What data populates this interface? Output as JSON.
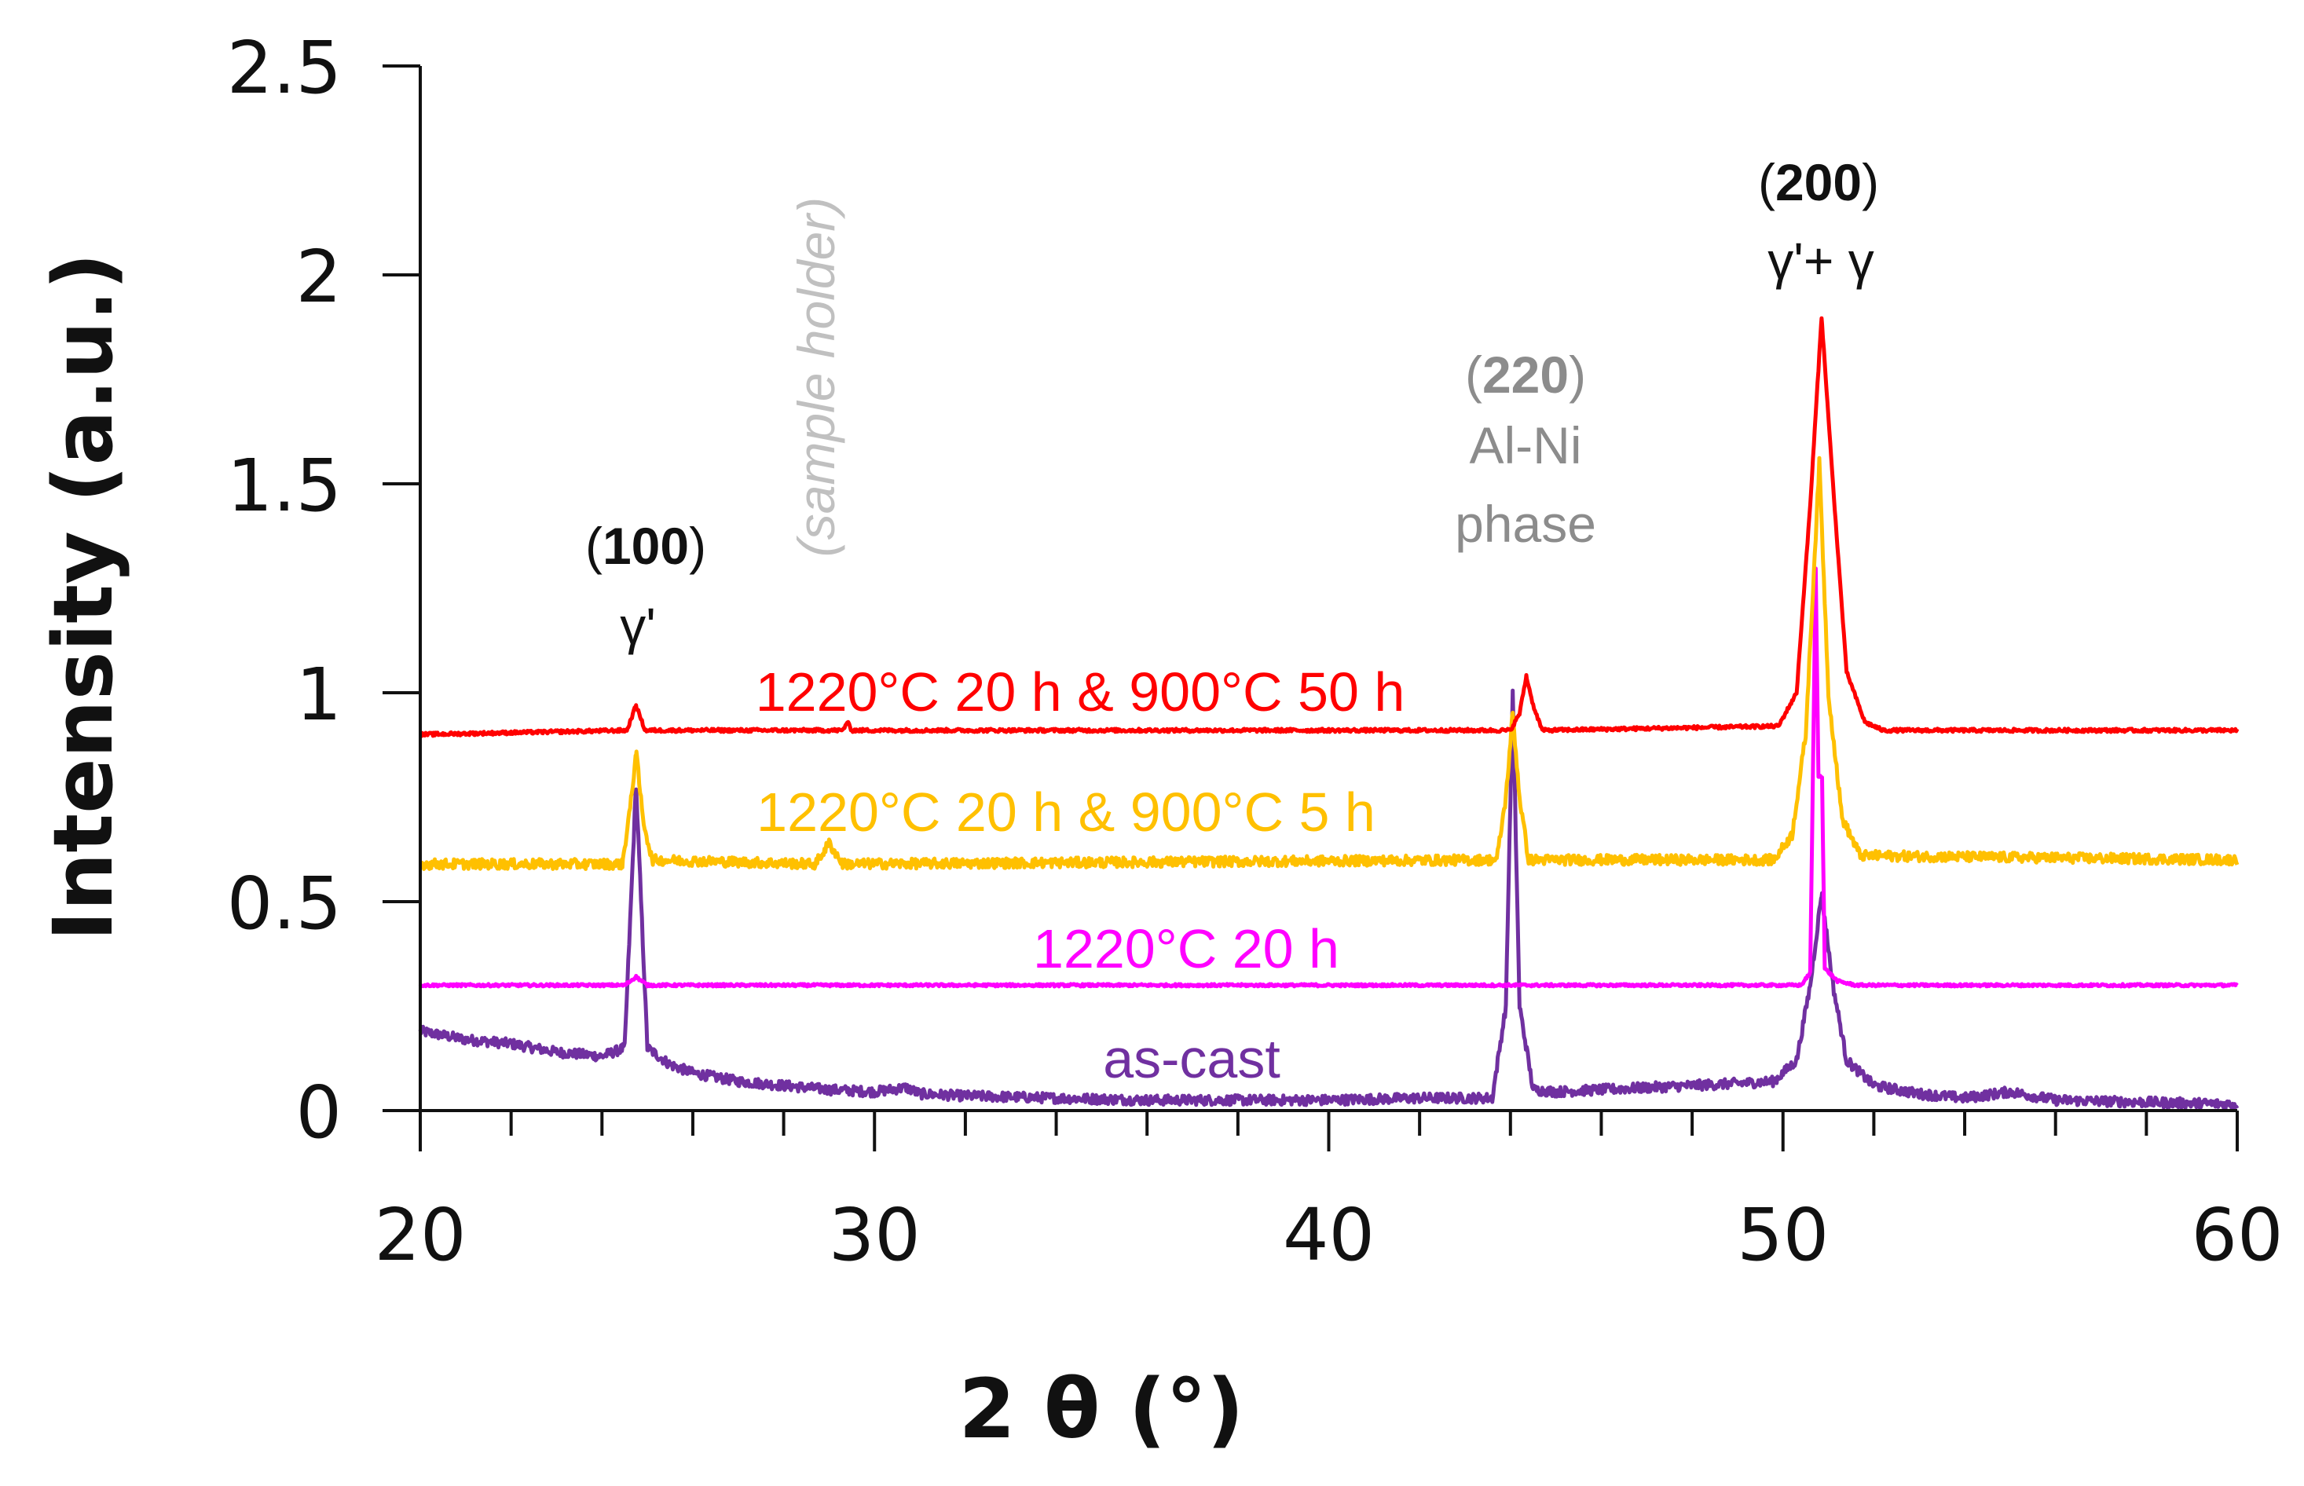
{
  "chart_data": {
    "type": "line",
    "title": "",
    "xlabel": "2 θ (°)",
    "ylabel": "Intensity (a.u.)",
    "xlim": [
      20,
      60
    ],
    "ylim": [
      0,
      2.5
    ],
    "x_ticks": [
      20,
      30,
      40,
      50,
      60
    ],
    "x_minor_step": 2,
    "y_ticks": [
      "0",
      "0.5",
      "1",
      "1.5",
      "2",
      "2.5"
    ],
    "grid": false,
    "series": [
      {
        "name": "as-cast",
        "label": "as-cast",
        "color": "#7030A0",
        "points": [
          [
            20,
            0.19
          ],
          [
            21,
            0.17
          ],
          [
            22,
            0.16
          ],
          [
            23,
            0.14
          ],
          [
            24,
            0.13
          ],
          [
            24.5,
            0.15
          ],
          [
            24.75,
            0.78
          ],
          [
            25.0,
            0.15
          ],
          [
            25.5,
            0.11
          ],
          [
            26,
            0.09
          ],
          [
            27,
            0.07
          ],
          [
            28,
            0.06
          ],
          [
            29,
            0.05
          ],
          [
            30,
            0.045
          ],
          [
            30.7,
            0.055
          ],
          [
            31,
            0.04
          ],
          [
            32,
            0.035
          ],
          [
            34,
            0.03
          ],
          [
            36,
            0.025
          ],
          [
            38,
            0.025
          ],
          [
            40,
            0.025
          ],
          [
            42,
            0.03
          ],
          [
            43.6,
            0.03
          ],
          [
            43.9,
            0.25
          ],
          [
            44.05,
            1.0
          ],
          [
            44.2,
            0.25
          ],
          [
            44.5,
            0.05
          ],
          [
            45,
            0.045
          ],
          [
            46,
            0.05
          ],
          [
            47,
            0.055
          ],
          [
            48,
            0.06
          ],
          [
            49,
            0.065
          ],
          [
            49.8,
            0.07
          ],
          [
            50.3,
            0.12
          ],
          [
            50.6,
            0.3
          ],
          [
            50.85,
            0.52
          ],
          [
            51.1,
            0.3
          ],
          [
            51.4,
            0.12
          ],
          [
            52,
            0.06
          ],
          [
            53,
            0.04
          ],
          [
            54,
            0.03
          ],
          [
            55,
            0.045
          ],
          [
            56,
            0.025
          ],
          [
            58,
            0.02
          ],
          [
            60,
            0.015
          ]
        ],
        "noise": 0.012
      },
      {
        "name": "1220°C 20 h",
        "label": "1220°C 20 h",
        "color": "#FF00FF",
        "points": [
          [
            20,
            0.3
          ],
          [
            24.5,
            0.3
          ],
          [
            24.75,
            0.32
          ],
          [
            25.0,
            0.3
          ],
          [
            44.0,
            0.3
          ],
          [
            50.4,
            0.3
          ],
          [
            50.6,
            0.33
          ],
          [
            50.72,
            1.3
          ],
          [
            50.78,
            0.8
          ],
          [
            50.86,
            0.8
          ],
          [
            50.92,
            0.34
          ],
          [
            51.2,
            0.31
          ],
          [
            51.6,
            0.3
          ],
          [
            60,
            0.3
          ]
        ],
        "noise": 0.003
      },
      {
        "name": "1220°C 20 h & 900°C 5 h",
        "label": "1220°C 20 h & 900°C 5 h",
        "color": "#FFC000",
        "points": [
          [
            20,
            0.59
          ],
          [
            24.45,
            0.59
          ],
          [
            24.65,
            0.75
          ],
          [
            24.75,
            0.86
          ],
          [
            24.9,
            0.7
          ],
          [
            25.1,
            0.6
          ],
          [
            28.7,
            0.59
          ],
          [
            29.0,
            0.64
          ],
          [
            29.3,
            0.59
          ],
          [
            43.7,
            0.6
          ],
          [
            43.9,
            0.75
          ],
          [
            44.05,
            0.95
          ],
          [
            44.2,
            0.75
          ],
          [
            44.4,
            0.6
          ],
          [
            49.8,
            0.6
          ],
          [
            50.2,
            0.66
          ],
          [
            50.5,
            0.9
          ],
          [
            50.8,
            1.55
          ],
          [
            51.0,
            1.0
          ],
          [
            51.3,
            0.7
          ],
          [
            51.7,
            0.61
          ],
          [
            60,
            0.6
          ]
        ],
        "noise": 0.012
      },
      {
        "name": "1220°C 20 h & 900°C 50 h",
        "label": "1220°C 20 h & 900°C 50 h",
        "color": "#FF0000",
        "points": [
          [
            20,
            0.9
          ],
          [
            24.55,
            0.91
          ],
          [
            24.75,
            0.97
          ],
          [
            24.95,
            0.91
          ],
          [
            29.3,
            0.91
          ],
          [
            29.4,
            0.93
          ],
          [
            29.5,
            0.91
          ],
          [
            44.0,
            0.91
          ],
          [
            44.2,
            0.95
          ],
          [
            44.35,
            1.04
          ],
          [
            44.5,
            0.97
          ],
          [
            44.7,
            0.91
          ],
          [
            49.9,
            0.92
          ],
          [
            50.3,
            1.0
          ],
          [
            50.6,
            1.45
          ],
          [
            50.85,
            1.9
          ],
          [
            51.1,
            1.5
          ],
          [
            51.4,
            1.05
          ],
          [
            51.8,
            0.93
          ],
          [
            52.2,
            0.91
          ],
          [
            60,
            0.91
          ]
        ],
        "noise": 0.004
      }
    ],
    "annotations": [
      {
        "id": "ann-100",
        "hkl": "100",
        "phase": "γ'"
      },
      {
        "id": "ann-220",
        "hkl": "220",
        "phase_line1": "Al-Ni",
        "phase_line2": "phase"
      },
      {
        "id": "ann-200",
        "hkl": "200",
        "phase": "γ'+ γ"
      },
      {
        "id": "ann-holder",
        "text": "(sample holder)"
      }
    ]
  },
  "colors": {
    "axis": "#111111",
    "annotation_dark": "#111111",
    "annotation_gray": "#8c8c8c",
    "annotation_light": "#c0c0c0"
  }
}
